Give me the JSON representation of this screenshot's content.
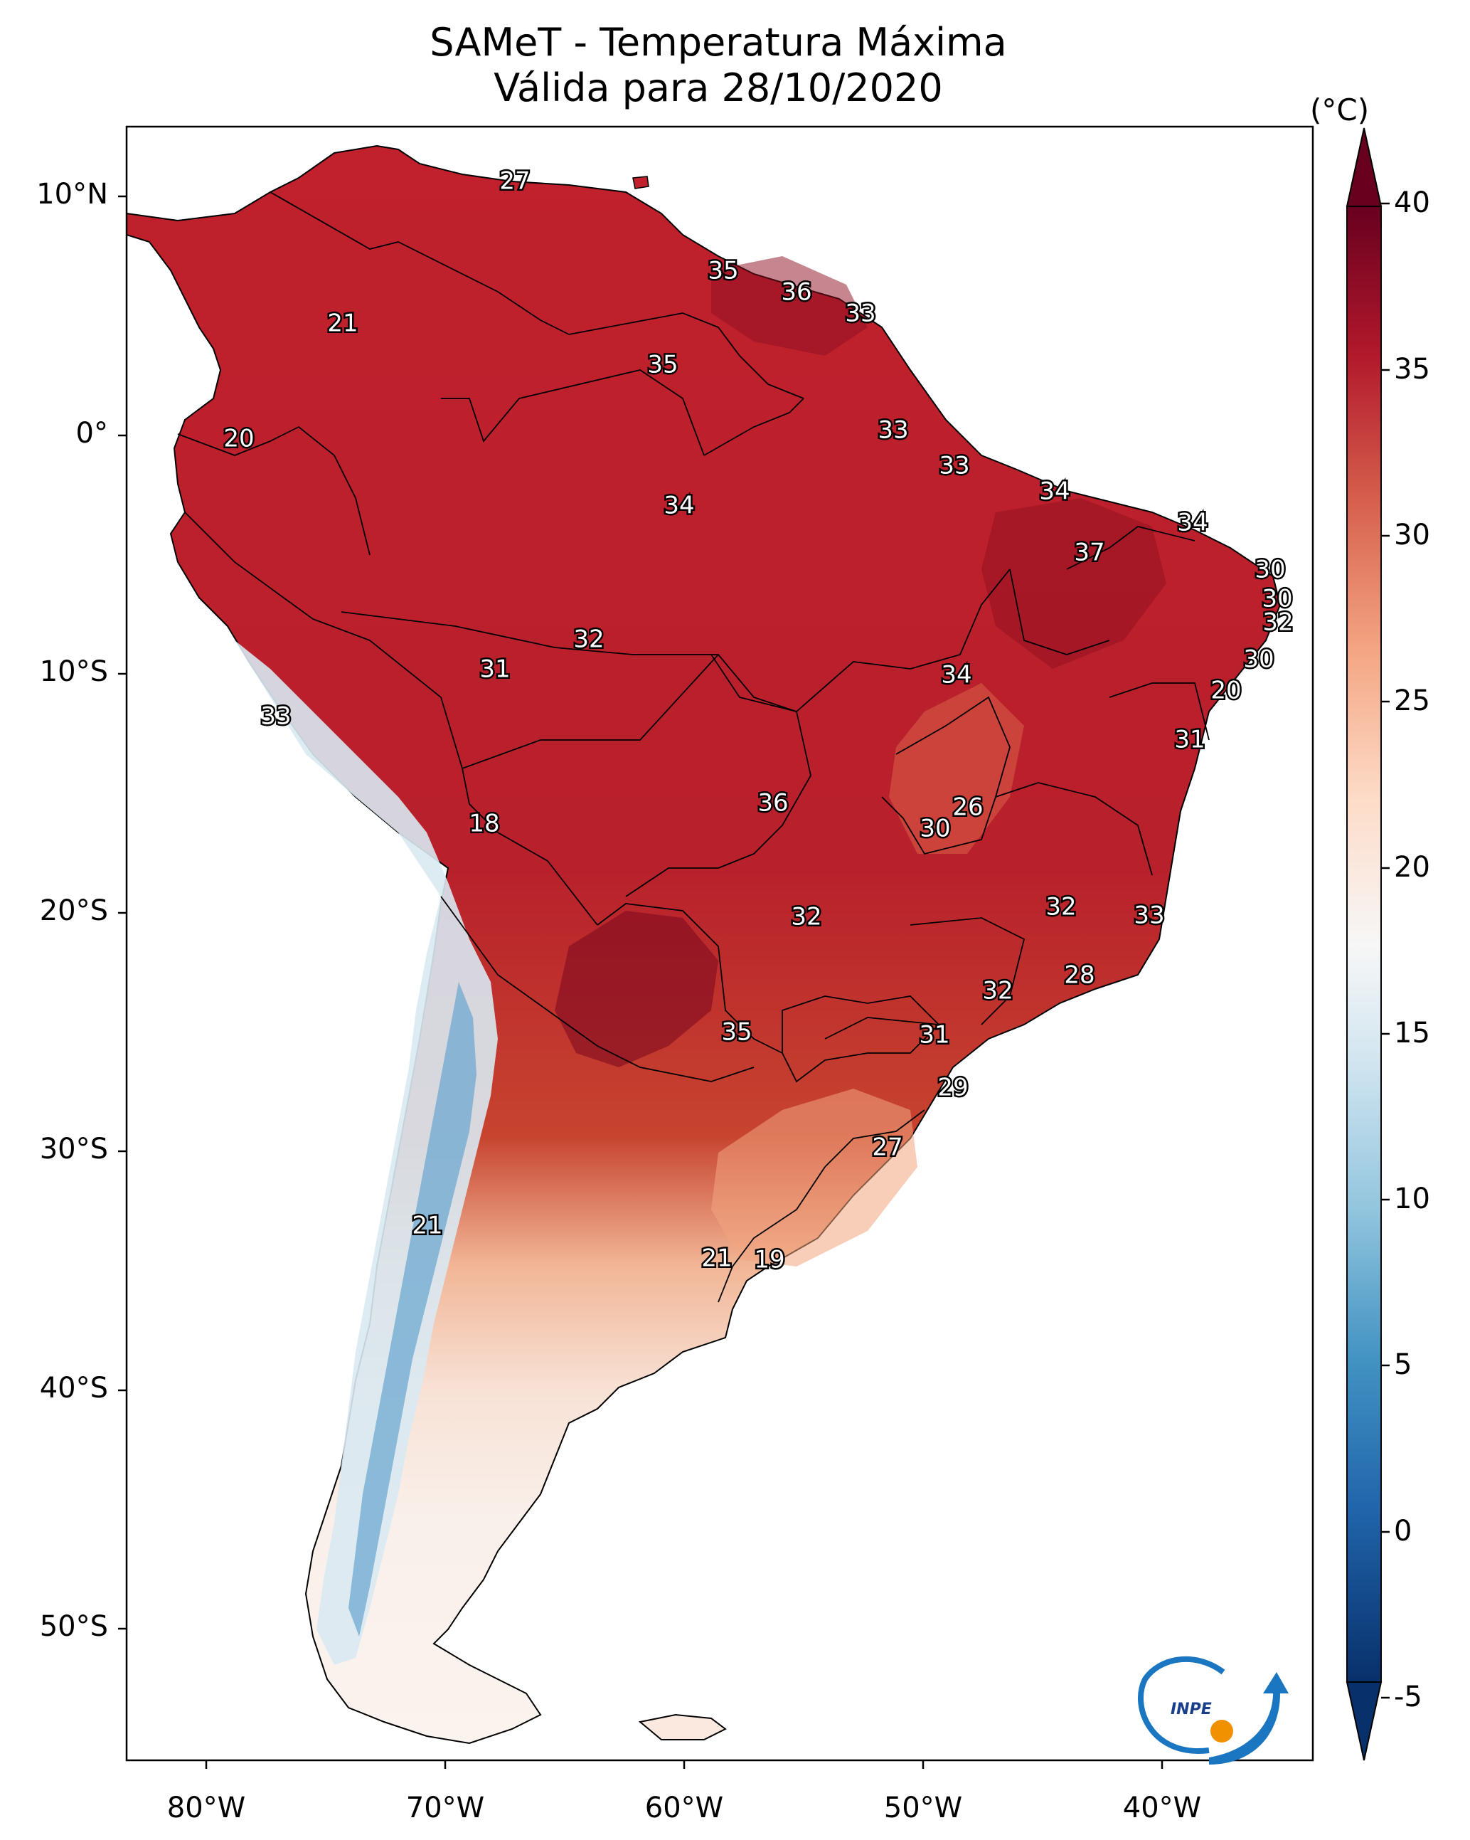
{
  "title": {
    "line1": "SAMeT - Temperatura Máxima",
    "line2": "Válida para 28/10/2020"
  },
  "axes": {
    "lat_labels": [
      "10°N",
      "0°",
      "10°S",
      "20°S",
      "30°S",
      "40°S",
      "50°S"
    ],
    "lon_labels": [
      "80°W",
      "70°W",
      "60°W",
      "50°W",
      "40°W"
    ]
  },
  "colorbar": {
    "unit": "(°C)",
    "ticks": [
      "40",
      "35",
      "30",
      "25",
      "20",
      "15",
      "10",
      "5",
      "0",
      "-5"
    ],
    "range": [
      -5,
      40
    ],
    "colors": [
      "#08306b",
      "#2166ac",
      "#4393c3",
      "#92c5de",
      "#d1e5f0",
      "#f7f7f7",
      "#fddbc7",
      "#f4a582",
      "#d6604d",
      "#b2182b",
      "#67001f"
    ]
  },
  "map_labels": [
    "27",
    "21",
    "35",
    "36",
    "33",
    "35",
    "20",
    "33",
    "33",
    "34",
    "34",
    "34",
    "37",
    "30",
    "30",
    "32",
    "32",
    "30",
    "31",
    "20",
    "33",
    "34",
    "31",
    "18",
    "36",
    "26",
    "30",
    "32",
    "32",
    "33",
    "28",
    "32",
    "35",
    "31",
    "29",
    "27",
    "21",
    "21",
    "19"
  ],
  "logo": {
    "text": "INPE"
  },
  "colors": {
    "land_hot": "#b2182b",
    "land_cool": "#4393c3",
    "ocean": "#ffffff"
  }
}
